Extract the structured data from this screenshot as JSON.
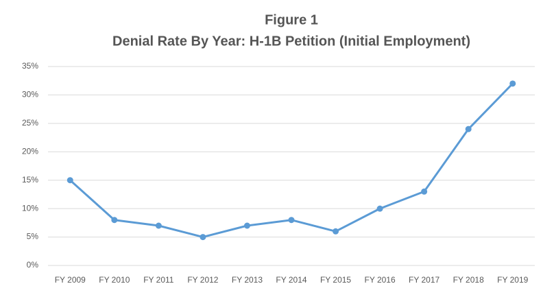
{
  "chart_data": {
    "type": "line",
    "title": "Figure 1",
    "subtitle": "Denial Rate By Year: H-1B Petition (Initial Employment)",
    "categories": [
      "FY 2009",
      "FY 2010",
      "FY 2011",
      "FY 2012",
      "FY 2013",
      "FY 2014",
      "FY 2015",
      "FY 2016",
      "FY 2017",
      "FY 2018",
      "FY 2019"
    ],
    "values": [
      15,
      8,
      7,
      5,
      7,
      8,
      6,
      10,
      13,
      24,
      32
    ],
    "color": "#5b9bd5",
    "ylim": [
      0,
      35
    ],
    "yticks": [
      {
        "value": 0,
        "label": "0%"
      },
      {
        "value": 5,
        "label": "5%"
      },
      {
        "value": 10,
        "label": "10%"
      },
      {
        "value": 15,
        "label": "15%"
      },
      {
        "value": 20,
        "label": "20%"
      },
      {
        "value": 25,
        "label": "25%"
      },
      {
        "value": 30,
        "label": "30%"
      },
      {
        "value": 35,
        "label": "35%"
      }
    ],
    "grid": true
  }
}
